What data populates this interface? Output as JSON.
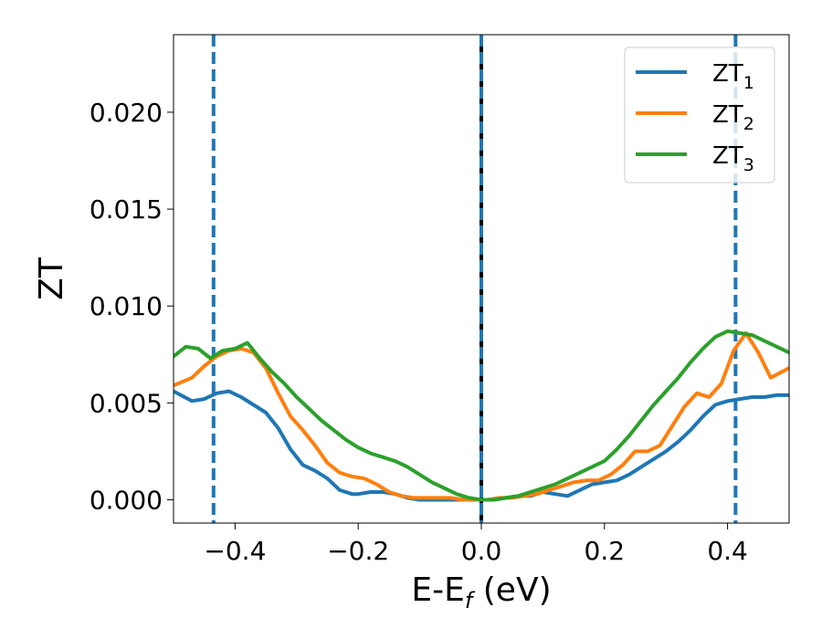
{
  "chart_data": {
    "type": "line",
    "xlabel": {
      "main": "E-E",
      "sub": "f",
      "tail": " (eV)"
    },
    "ylabel": "ZT",
    "xlim": [
      -0.5,
      0.5
    ],
    "ylim": [
      -0.0012,
      0.024
    ],
    "xticks": [
      -0.4,
      -0.2,
      0.0,
      0.2,
      0.4
    ],
    "xtick_labels": [
      "−0.4",
      "−0.2",
      "0.0",
      "0.2",
      "0.4"
    ],
    "yticks": [
      0.0,
      0.005,
      0.01,
      0.015,
      0.02
    ],
    "ytick_labels": [
      "0.000",
      "0.005",
      "0.010",
      "0.015",
      "0.020"
    ],
    "grid": false,
    "legend_position": "top-right",
    "vlines": [
      {
        "x": -0.435,
        "style": "dashed",
        "color": "#1f77b4"
      },
      {
        "x": 0.0,
        "style": "solid",
        "color": "#000000"
      },
      {
        "x": 0.0,
        "style": "dashed",
        "color": "#1f77b4"
      },
      {
        "x": 0.413,
        "style": "dashed",
        "color": "#1f77b4"
      }
    ],
    "series": [
      {
        "name": "ZT",
        "sub": "1",
        "color": "#1f77b4",
        "x": [
          -0.5,
          -0.47,
          -0.45,
          -0.43,
          -0.41,
          -0.39,
          -0.37,
          -0.35,
          -0.33,
          -0.31,
          -0.29,
          -0.27,
          -0.25,
          -0.23,
          -0.21,
          -0.2,
          -0.18,
          -0.16,
          -0.14,
          -0.12,
          -0.1,
          -0.08,
          -0.06,
          -0.04,
          -0.02,
          0.0,
          0.02,
          0.04,
          0.06,
          0.08,
          0.1,
          0.12,
          0.14,
          0.16,
          0.18,
          0.2,
          0.22,
          0.24,
          0.26,
          0.28,
          0.3,
          0.32,
          0.34,
          0.36,
          0.38,
          0.4,
          0.42,
          0.44,
          0.46,
          0.48,
          0.5
        ],
        "y": [
          0.0056,
          0.0051,
          0.0052,
          0.0055,
          0.0056,
          0.0053,
          0.0049,
          0.0045,
          0.0037,
          0.0026,
          0.0018,
          0.0015,
          0.0011,
          0.0005,
          0.0003,
          0.0003,
          0.0004,
          0.0004,
          0.0003,
          0.0001,
          0.0,
          0.0,
          0.0,
          0.0,
          0.0,
          0.0,
          0.0,
          0.0001,
          0.0002,
          0.0002,
          0.0004,
          0.0003,
          0.0002,
          0.0005,
          0.0008,
          0.0009,
          0.001,
          0.0013,
          0.0017,
          0.0021,
          0.0025,
          0.003,
          0.0036,
          0.0043,
          0.0049,
          0.0051,
          0.0052,
          0.0053,
          0.0053,
          0.0054,
          0.0054
        ]
      },
      {
        "name": "ZT",
        "sub": "2",
        "color": "#ff7f0e",
        "x": [
          -0.5,
          -0.47,
          -0.45,
          -0.43,
          -0.41,
          -0.39,
          -0.37,
          -0.35,
          -0.33,
          -0.31,
          -0.29,
          -0.27,
          -0.25,
          -0.23,
          -0.21,
          -0.19,
          -0.17,
          -0.15,
          -0.13,
          -0.11,
          -0.09,
          -0.07,
          -0.05,
          -0.03,
          -0.01,
          0.01,
          0.03,
          0.05,
          0.07,
          0.09,
          0.11,
          0.13,
          0.15,
          0.17,
          0.19,
          0.21,
          0.23,
          0.25,
          0.27,
          0.29,
          0.31,
          0.33,
          0.35,
          0.37,
          0.39,
          0.41,
          0.43,
          0.45,
          0.47,
          0.5
        ],
        "y": [
          0.0059,
          0.0063,
          0.0069,
          0.0074,
          0.0077,
          0.0078,
          0.0076,
          0.0068,
          0.0055,
          0.0043,
          0.0036,
          0.0028,
          0.0019,
          0.0014,
          0.0012,
          0.0011,
          0.0008,
          0.0004,
          0.0002,
          0.0001,
          0.0001,
          0.0001,
          0.0001,
          0.0,
          0.0,
          0.0,
          0.0001,
          0.0001,
          0.0002,
          0.0003,
          0.0005,
          0.0007,
          0.0009,
          0.001,
          0.001,
          0.0013,
          0.0018,
          0.0025,
          0.0025,
          0.0028,
          0.0038,
          0.0048,
          0.0055,
          0.0053,
          0.006,
          0.0077,
          0.0086,
          0.0076,
          0.0063,
          0.0068
        ]
      },
      {
        "name": "ZT",
        "sub": "3",
        "color": "#2ca02c",
        "x": [
          -0.5,
          -0.48,
          -0.46,
          -0.44,
          -0.42,
          -0.4,
          -0.38,
          -0.36,
          -0.34,
          -0.32,
          -0.3,
          -0.28,
          -0.26,
          -0.24,
          -0.22,
          -0.2,
          -0.18,
          -0.16,
          -0.14,
          -0.12,
          -0.1,
          -0.08,
          -0.06,
          -0.04,
          -0.02,
          0.0,
          0.02,
          0.04,
          0.06,
          0.08,
          0.1,
          0.12,
          0.14,
          0.16,
          0.18,
          0.2,
          0.22,
          0.24,
          0.26,
          0.28,
          0.3,
          0.32,
          0.34,
          0.36,
          0.38,
          0.4,
          0.42,
          0.44,
          0.46,
          0.48,
          0.5
        ],
        "y": [
          0.0074,
          0.0079,
          0.0078,
          0.0073,
          0.0077,
          0.0078,
          0.0081,
          0.0073,
          0.0066,
          0.006,
          0.0053,
          0.0047,
          0.0041,
          0.0036,
          0.0031,
          0.0027,
          0.0024,
          0.0022,
          0.002,
          0.0017,
          0.0013,
          0.0009,
          0.0006,
          0.0003,
          0.0001,
          0.0,
          0.0,
          0.0001,
          0.0002,
          0.0004,
          0.0006,
          0.0008,
          0.0011,
          0.0014,
          0.0017,
          0.002,
          0.0026,
          0.0033,
          0.0041,
          0.0049,
          0.0056,
          0.0063,
          0.0071,
          0.0078,
          0.0084,
          0.0087,
          0.0086,
          0.0085,
          0.0082,
          0.0079,
          0.0076
        ]
      }
    ]
  }
}
